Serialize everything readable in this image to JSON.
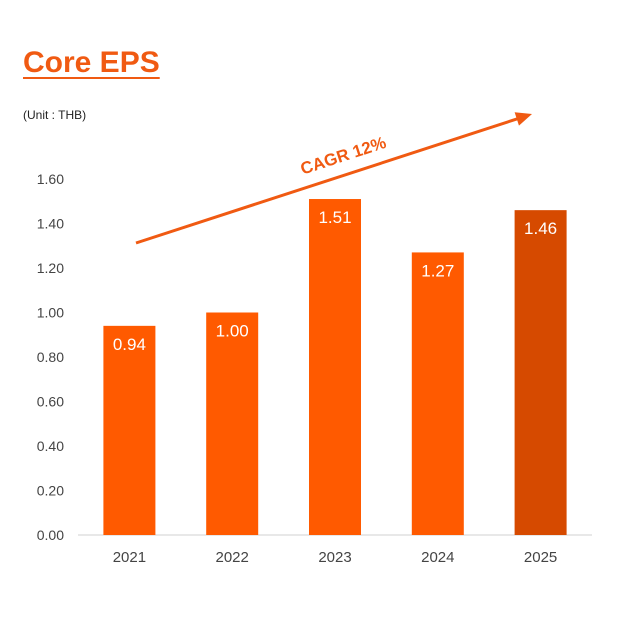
{
  "chart_data": {
    "type": "bar",
    "title": "Core EPS",
    "unit_label": "(Unit : THB)",
    "categories": [
      "2021",
      "2022",
      "2023",
      "2024",
      "2025"
    ],
    "values": [
      0.94,
      1.0,
      1.51,
      1.27,
      1.46
    ],
    "value_labels": [
      "0.94",
      "1.00",
      "1.51",
      "1.27",
      "1.46"
    ],
    "ylim": [
      0,
      1.6
    ],
    "yticks": [
      "0.00",
      "0.20",
      "0.40",
      "0.60",
      "0.80",
      "1.00",
      "1.20",
      "1.40",
      "1.60"
    ],
    "xlabel": "",
    "ylabel": "",
    "grid": false,
    "annotation": "CAGR  12%",
    "colors": {
      "bar": "#ff5a00",
      "highlight_bar": "#d64a00",
      "arrow": "#f05a12",
      "axis_text": "#444444"
    },
    "highlight_index": 4
  }
}
